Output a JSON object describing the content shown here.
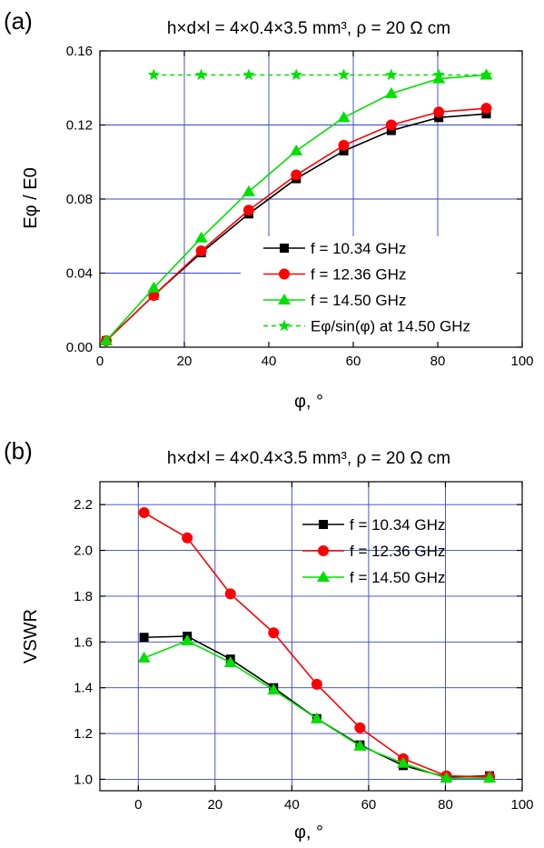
{
  "chart_data": [
    {
      "type": "line",
      "panel_label": "(a)",
      "title": "h×d×l = 4×0.4×3.5 mm³, ρ = 20 Ω cm",
      "xlabel": "φ, °",
      "ylabel": "Eφ / E0",
      "xlim": [
        0,
        100
      ],
      "ylim": [
        0,
        0.16
      ],
      "xticks": [
        "0",
        "20",
        "40",
        "60",
        "80",
        "100"
      ],
      "yticks": [
        "0.00",
        "0.04",
        "0.08",
        "0.12",
        "0.16"
      ],
      "grid": true,
      "legend_position": "lower-right",
      "series": [
        {
          "name": "f = 10.34 GHz",
          "color": "#000000",
          "marker": "square",
          "dashed": false,
          "x": [
            1.5,
            12.75,
            24,
            35.25,
            46.5,
            57.75,
            69,
            80.25,
            91.5
          ],
          "values": [
            0.0035,
            0.028,
            0.051,
            0.072,
            0.091,
            0.106,
            0.117,
            0.124,
            0.126
          ]
        },
        {
          "name": "f = 12.36 GHz",
          "color": "#ff0000",
          "marker": "circle",
          "dashed": false,
          "x": [
            1.5,
            12.75,
            24,
            35.25,
            46.5,
            57.75,
            69,
            80.25,
            91.5
          ],
          "values": [
            0.0035,
            0.028,
            0.052,
            0.074,
            0.093,
            0.109,
            0.12,
            0.127,
            0.129
          ]
        },
        {
          "name": "f = 14.50 GHz",
          "color": "#00e000",
          "marker": "triangle",
          "dashed": false,
          "x": [
            1.5,
            12.75,
            24,
            35.25,
            46.5,
            57.75,
            69,
            80.25,
            91.5
          ],
          "values": [
            0.0035,
            0.032,
            0.059,
            0.084,
            0.106,
            0.124,
            0.137,
            0.145,
            0.147
          ]
        },
        {
          "name": "Eφ/sin(φ) at 14.50 GHz",
          "color": "#00e000",
          "marker": "star",
          "dashed": true,
          "x": [
            12.75,
            24,
            35.25,
            46.5,
            57.75,
            69,
            80.25,
            91.5
          ],
          "values": [
            0.147,
            0.147,
            0.147,
            0.147,
            0.147,
            0.147,
            0.147,
            0.147
          ]
        }
      ]
    },
    {
      "type": "line",
      "panel_label": "(b)",
      "title": "h×d×l = 4×0.4×3.5 mm³, ρ = 20 Ω cm",
      "xlabel": "φ, °",
      "ylabel": "VSWR",
      "xlim": [
        -10,
        100
      ],
      "ylim": [
        0.95,
        2.3
      ],
      "xticks": [
        "0",
        "20",
        "40",
        "60",
        "80",
        "100"
      ],
      "yticks": [
        "1.0",
        "1.2",
        "1.4",
        "1.6",
        "1.8",
        "2.0",
        "2.2"
      ],
      "grid": true,
      "legend_position": "top-right",
      "series": [
        {
          "name": "f = 10.34 GHz",
          "color": "#000000",
          "marker": "square",
          "dashed": false,
          "x": [
            1.5,
            12.75,
            24,
            35.25,
            46.5,
            57.75,
            69,
            80.25,
            91.5
          ],
          "values": [
            1.62,
            1.625,
            1.525,
            1.4,
            1.265,
            1.15,
            1.06,
            1.01,
            1.015
          ]
        },
        {
          "name": "f = 12.36 GHz",
          "color": "#ff0000",
          "marker": "circle",
          "dashed": false,
          "x": [
            1.5,
            12.75,
            24,
            35.25,
            46.5,
            57.75,
            69,
            80.25,
            91.5
          ],
          "values": [
            2.165,
            2.055,
            1.81,
            1.64,
            1.415,
            1.225,
            1.09,
            1.015,
            1.01
          ]
        },
        {
          "name": "f = 14.50 GHz",
          "color": "#00e000",
          "marker": "triangle",
          "dashed": false,
          "x": [
            1.5,
            12.75,
            24,
            35.25,
            46.5,
            57.75,
            69,
            80.25,
            91.5
          ],
          "values": [
            1.53,
            1.605,
            1.51,
            1.39,
            1.265,
            1.145,
            1.07,
            1.005,
            1.005
          ]
        }
      ]
    }
  ]
}
